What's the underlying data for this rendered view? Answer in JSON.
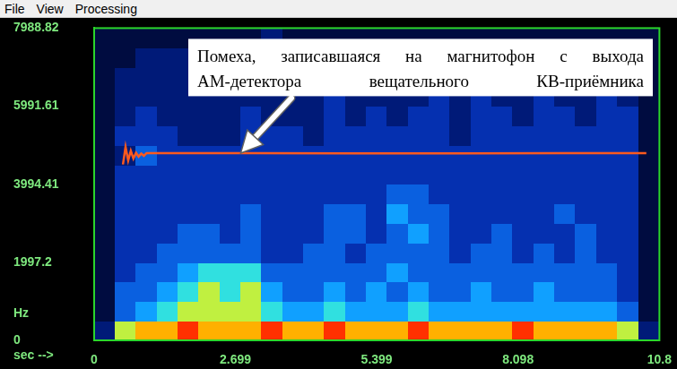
{
  "menu": [
    "File",
    "View",
    "Processing"
  ],
  "chart_data": {
    "type": "heatmap",
    "xlim": [
      0,
      10.8
    ],
    "xticks": [
      0,
      2.699,
      5.399,
      8.098,
      10.8
    ],
    "ylim": [
      0,
      7988.82
    ],
    "yticks": [
      0,
      1997.2,
      3994.41,
      5991.61,
      7988.82
    ],
    "x_label": "sec -->",
    "y_label": "Hz",
    "grid": false,
    "zlim": [
      0,
      9
    ],
    "cells": [
      [
        2,
        7,
        8,
        8,
        9,
        8,
        8,
        8,
        9,
        8,
        8,
        9,
        8,
        8,
        8,
        9,
        8,
        8,
        8,
        8,
        9,
        8,
        8,
        8,
        8,
        7,
        2
      ],
      [
        1,
        4,
        5,
        6,
        7,
        7,
        7,
        7,
        6,
        5,
        5,
        6,
        5,
        5,
        5,
        6,
        5,
        5,
        5,
        5,
        5,
        5,
        5,
        5,
        5,
        4,
        1
      ],
      [
        1,
        4,
        4,
        5,
        6,
        7,
        6,
        7,
        5,
        4,
        4,
        5,
        4,
        5,
        4,
        5,
        4,
        4,
        5,
        4,
        4,
        5,
        4,
        4,
        4,
        3,
        1
      ],
      [
        1,
        3,
        4,
        4,
        5,
        6,
        6,
        6,
        4,
        4,
        4,
        4,
        4,
        4,
        5,
        4,
        4,
        4,
        4,
        4,
        4,
        4,
        4,
        4,
        4,
        3,
        1
      ],
      [
        1,
        3,
        3,
        4,
        4,
        4,
        4,
        4,
        3,
        3,
        4,
        4,
        3,
        4,
        4,
        4,
        4,
        3,
        4,
        4,
        3,
        4,
        3,
        4,
        3,
        3,
        1
      ],
      [
        1,
        3,
        3,
        3,
        4,
        4,
        3,
        4,
        3,
        3,
        3,
        4,
        4,
        3,
        4,
        5,
        4,
        3,
        3,
        4,
        3,
        3,
        3,
        4,
        3,
        3,
        1
      ],
      [
        1,
        3,
        3,
        3,
        3,
        3,
        3,
        4,
        3,
        3,
        3,
        4,
        4,
        3,
        5,
        4,
        4,
        3,
        3,
        3,
        3,
        3,
        4,
        3,
        3,
        3,
        1
      ],
      [
        1,
        3,
        3,
        3,
        3,
        3,
        3,
        3,
        3,
        3,
        3,
        3,
        3,
        3,
        4,
        4,
        3,
        3,
        3,
        3,
        3,
        3,
        3,
        3,
        3,
        3,
        1
      ],
      [
        1,
        3,
        3,
        3,
        3,
        3,
        3,
        3,
        3,
        3,
        3,
        3,
        3,
        3,
        3,
        3,
        3,
        3,
        3,
        3,
        3,
        3,
        3,
        3,
        3,
        3,
        1
      ],
      [
        1,
        2,
        4,
        3,
        3,
        3,
        3,
        3,
        3,
        3,
        3,
        3,
        3,
        3,
        3,
        3,
        3,
        3,
        3,
        3,
        3,
        3,
        3,
        3,
        3,
        3,
        1
      ],
      [
        1,
        3,
        3,
        3,
        2,
        2,
        2,
        3,
        3,
        3,
        2,
        3,
        3,
        3,
        3,
        3,
        3,
        2,
        3,
        3,
        3,
        3,
        3,
        3,
        3,
        3,
        1
      ],
      [
        1,
        2,
        3,
        2,
        2,
        2,
        2,
        3,
        2,
        2,
        2,
        3,
        2,
        3,
        2,
        3,
        3,
        2,
        3,
        3,
        2,
        3,
        3,
        2,
        3,
        3,
        1
      ],
      [
        1,
        2,
        2,
        2,
        2,
        2,
        2,
        2,
        2,
        2,
        2,
        3,
        2,
        2,
        2,
        2,
        3,
        2,
        3,
        2,
        2,
        3,
        2,
        2,
        3,
        2,
        1
      ],
      [
        1,
        2,
        2,
        2,
        2,
        2,
        2,
        2,
        2,
        2,
        2,
        2,
        2,
        2,
        2,
        2,
        2,
        2,
        2,
        2,
        2,
        2,
        2,
        2,
        2,
        2,
        1
      ],
      [
        1,
        1,
        2,
        2,
        2,
        2,
        2,
        2,
        2,
        2,
        2,
        2,
        2,
        2,
        2,
        2,
        2,
        2,
        2,
        2,
        2,
        2,
        2,
        2,
        2,
        2,
        1
      ],
      [
        1,
        1,
        1,
        1,
        1,
        1,
        1,
        1,
        2,
        1,
        1,
        1,
        1,
        1,
        1,
        1,
        1,
        1,
        1,
        1,
        1,
        1,
        1,
        1,
        1,
        1,
        1
      ]
    ],
    "series": [
      {
        "type": "line",
        "color": "#ff5a1e",
        "x": [
          0.55,
          0.6,
          0.65,
          0.7,
          0.75,
          0.8,
          0.85,
          0.9,
          0.95,
          1.0,
          1.1,
          1.5,
          3,
          5,
          7,
          9,
          10.55
        ],
        "values": [
          4500,
          4950,
          4600,
          4850,
          4650,
          4800,
          4700,
          4780,
          4720,
          4790,
          4790,
          4790,
          4790,
          4785,
          4785,
          4790,
          4790
        ]
      }
    ],
    "annotations": [
      {
        "text": [
          "Помеха, записавшаяся на магнитофон с выхода",
          "АМ-детектора вещательного КВ-приёмника"
        ],
        "x": 2.8,
        "y": 4790
      }
    ]
  }
}
